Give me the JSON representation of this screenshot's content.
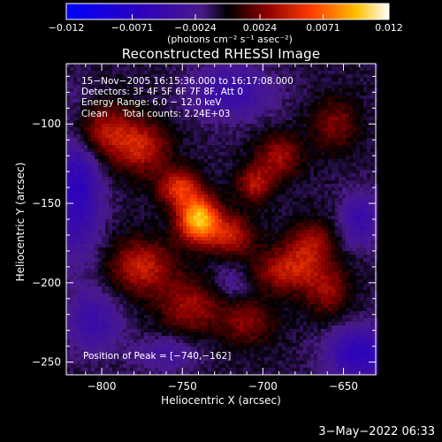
{
  "chart_data": {
    "type": "heatmap",
    "title": "Reconstructed RHESSI Image",
    "xlabel": "Heliocentric X (arcsec)",
    "ylabel": "Heliocentric Y (arcsec)",
    "x_ticks": [
      "−800",
      "−750",
      "−700",
      "−650"
    ],
    "x_tick_values": [
      -800,
      -750,
      -700,
      -650
    ],
    "y_ticks": [
      "−100",
      "−150",
      "−200",
      "−250"
    ],
    "y_tick_values": [
      -100,
      -150,
      -200,
      -250
    ],
    "xlim": [
      -822,
      -630
    ],
    "ylim": [
      -258,
      -62
    ],
    "colorbar": {
      "ticks": [
        "−0.012",
        "−0.0071",
        "−0.0024",
        "0.0024",
        "0.0071",
        "0.012"
      ],
      "tick_values": [
        -0.012,
        -0.0071,
        -0.0024,
        0.0024,
        0.0071,
        0.012
      ],
      "range": [
        -0.012,
        0.012
      ],
      "unit_label": "(photons cm⁻² s⁻¹ asec⁻²)"
    },
    "peak": {
      "x": -740,
      "y": -162
    },
    "sources": [
      {
        "x": -740,
        "y": -160,
        "amp": 0.0105,
        "sx": 9,
        "sy": 10
      },
      {
        "x": -752,
        "y": -140,
        "amp": 0.006,
        "sx": 9,
        "sy": 8
      },
      {
        "x": -720,
        "y": -170,
        "amp": 0.005,
        "sx": 10,
        "sy": 9
      },
      {
        "x": -705,
        "y": -138,
        "amp": 0.0045,
        "sx": 8,
        "sy": 8
      },
      {
        "x": -775,
        "y": -190,
        "amp": 0.0052,
        "sx": 14,
        "sy": 12
      },
      {
        "x": -800,
        "y": -105,
        "amp": 0.005,
        "sx": 14,
        "sy": 12
      },
      {
        "x": -775,
        "y": -115,
        "amp": 0.0048,
        "sx": 12,
        "sy": 12
      },
      {
        "x": -690,
        "y": -120,
        "amp": 0.0042,
        "sx": 10,
        "sy": 10
      },
      {
        "x": -685,
        "y": -192,
        "amp": 0.005,
        "sx": 14,
        "sy": 10
      },
      {
        "x": -670,
        "y": -175,
        "amp": 0.004,
        "sx": 10,
        "sy": 10
      },
      {
        "x": -745,
        "y": -215,
        "amp": 0.004,
        "sx": 14,
        "sy": 12
      },
      {
        "x": -710,
        "y": -225,
        "amp": 0.0034,
        "sx": 12,
        "sy": 10
      },
      {
        "x": -660,
        "y": -205,
        "amp": 0.0036,
        "sx": 10,
        "sy": 12
      },
      {
        "x": -655,
        "y": -100,
        "amp": 0.0032,
        "sx": 10,
        "sy": 12
      },
      {
        "x": -815,
        "y": -140,
        "amp": -0.0055,
        "sx": 10,
        "sy": 30
      },
      {
        "x": -805,
        "y": -225,
        "amp": -0.0035,
        "sx": 12,
        "sy": 14
      },
      {
        "x": -640,
        "y": -245,
        "amp": -0.0055,
        "sx": 14,
        "sy": 12
      },
      {
        "x": -640,
        "y": -160,
        "amp": -0.004,
        "sx": 8,
        "sy": 12
      },
      {
        "x": -720,
        "y": -80,
        "amp": -0.004,
        "sx": 18,
        "sy": 12
      },
      {
        "x": -760,
        "y": -245,
        "amp": -0.0025,
        "sx": 14,
        "sy": 8
      },
      {
        "x": -720,
        "y": -200,
        "amp": -0.002,
        "sx": 8,
        "sy": 8
      }
    ]
  },
  "info": {
    "line1": "15−Nov−2005 16:15:36.000 to 16:17:08.000",
    "line2": "Detectors: 3F 4F 5F 6F 7F 8F, Att 0",
    "line3": "Energy Range: 6.0 − 12.0 keV",
    "line4": "Clean     Total counts: 2.24E+03"
  },
  "peak_text": "Position of Peak = [−740,−162]",
  "date_stamp": "3−May−2022 06:33"
}
